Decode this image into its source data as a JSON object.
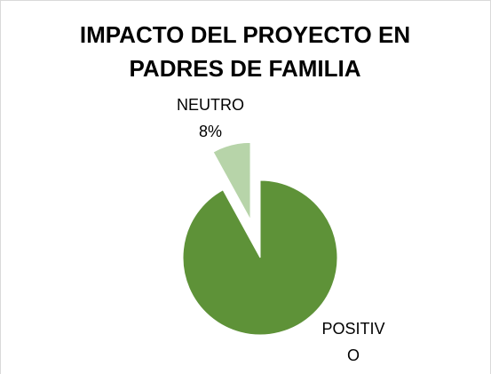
{
  "chart_data": {
    "type": "pie",
    "title": "IMPACTO DEL PROYECTO EN PADRES DE FAMILIA",
    "categories": [
      "POSITIVO",
      "NEUTRO"
    ],
    "values": [
      92,
      8
    ],
    "value_labels": [
      null,
      "8%"
    ],
    "colors": [
      "#5e9238",
      "#b7d4a9"
    ]
  }
}
